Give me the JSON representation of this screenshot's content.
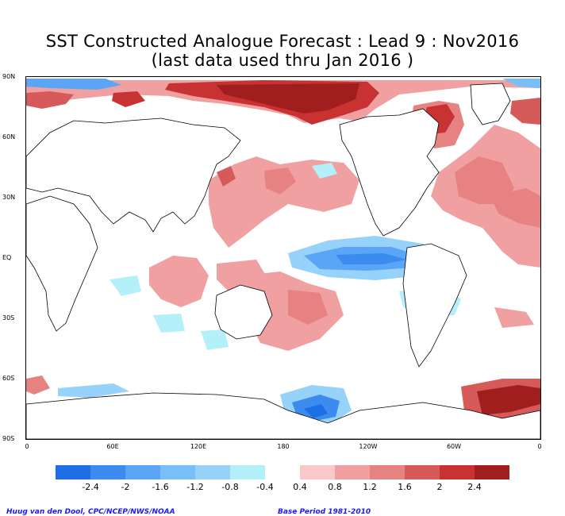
{
  "title": {
    "line1": "SST Constructed Analogue Forecast : Lead 9 : Nov2016",
    "line2": "(last data used thru Jan 2016 )"
  },
  "lat_labels": [
    "90N",
    "60N",
    "30N",
    "EQ",
    "30S",
    "60S",
    "90S"
  ],
  "lon_labels": [
    "0",
    "60E",
    "120E",
    "180",
    "120W",
    "60W",
    "0"
  ],
  "colorbar": {
    "labels": [
      "-2.4",
      "-2",
      "-1.6",
      "-1.2",
      "-0.8",
      "-0.4",
      "0.4",
      "0.8",
      "1.2",
      "1.6",
      "2",
      "2.4"
    ],
    "negative_colors": [
      "#1e6ee6",
      "#3c8cf0",
      "#5aa5f5",
      "#78bef7",
      "#96d2fa",
      "#b4f0fa"
    ],
    "positive_colors": [
      "#fac8c8",
      "#f0a0a0",
      "#e68282",
      "#d75a5a",
      "#c83232",
      "#a01e1e"
    ]
  },
  "credits": {
    "left": "Huug van den Dool, CPC/NCEP/NWS/NOAA",
    "right": "Base Period 1981-2010"
  }
}
